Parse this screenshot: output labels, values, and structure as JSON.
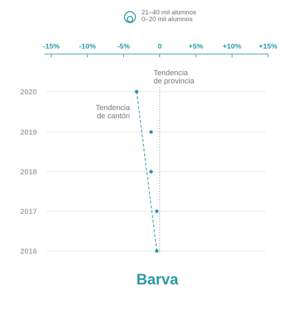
{
  "legend": {
    "items": [
      {
        "label": "21–40 mil alumnos"
      },
      {
        "label": "0–20 mil alumnos"
      }
    ],
    "icon": "nested-circles-icon"
  },
  "colors": {
    "accent": "#2a9aa3",
    "axis_tick": "#2a9aa3",
    "year_label": "#aaaaaa",
    "grid": "#e6e6e6",
    "annotation": "#777777"
  },
  "chart_data": {
    "type": "scatter",
    "title": "Barva",
    "x_ticks": [
      "-15%",
      "-10%",
      "-5%",
      "0",
      "+5%",
      "+10%",
      "+15%"
    ],
    "x_tick_values": [
      -15,
      -10,
      -5,
      0,
      5,
      10,
      15
    ],
    "xlim": [
      -15,
      15
    ],
    "y_categories": [
      "2020",
      "2019",
      "2018",
      "2017",
      "2016"
    ],
    "points": [
      {
        "year": "2020",
        "x": -3.2
      },
      {
        "year": "2019",
        "x": -1.2
      },
      {
        "year": "2018",
        "x": -1.2
      },
      {
        "year": "2017",
        "x": -0.4
      },
      {
        "year": "2016",
        "x": -0.4
      }
    ],
    "trend_canton": {
      "label_line1": "Tendencia",
      "label_line2": "de cantón",
      "from": {
        "year": "2020",
        "x": -3.2
      },
      "to": {
        "year": "2016",
        "x": -0.4
      }
    },
    "trend_provincia": {
      "label_line1": "Tendencia",
      "label_line2": "de provincia",
      "x": 0
    },
    "grid": true
  }
}
